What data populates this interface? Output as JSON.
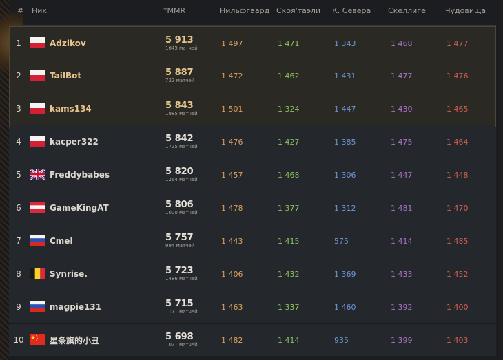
{
  "header": {
    "rank": "#",
    "nick": "Ник",
    "mmr": "*MMR",
    "nilf": "Нильфгаард",
    "sko": "Скоя'таэли",
    "nr": "К. Севера",
    "skel": "Скеллиге",
    "mon": "Чудовища"
  },
  "colors": {
    "nilf": "#d9a05e",
    "sko": "#8cc063",
    "nr": "#6d95d6",
    "skel": "#a874c6",
    "mon": "#d35f4f"
  },
  "rows": [
    {
      "rank": "1",
      "flag": "PL",
      "nick": "Adzikov",
      "mmr": "5 913",
      "matches": "1645 матчей",
      "nilf": "1 497",
      "sko": "1 471",
      "nr": "1 343",
      "skel": "1 468",
      "mon": "1 477"
    },
    {
      "rank": "2",
      "flag": "PL",
      "nick": "TailBot",
      "mmr": "5 887",
      "matches": "732 матчей",
      "nilf": "1 472",
      "sko": "1 462",
      "nr": "1 431",
      "skel": "1 477",
      "mon": "1 476"
    },
    {
      "rank": "3",
      "flag": "PL",
      "nick": "kams134",
      "mmr": "5 843",
      "matches": "1985 матчей",
      "nilf": "1 501",
      "sko": "1 324",
      "nr": "1 447",
      "skel": "1 430",
      "mon": "1 465"
    },
    {
      "rank": "4",
      "flag": "PL",
      "nick": "kacper322",
      "mmr": "5 842",
      "matches": "1725 матчей",
      "nilf": "1 476",
      "sko": "1 427",
      "nr": "1 385",
      "skel": "1 475",
      "mon": "1 464"
    },
    {
      "rank": "5",
      "flag": "GB",
      "nick": "Freddybabes",
      "mmr": "5 820",
      "matches": "1264 матчей",
      "nilf": "1 457",
      "sko": "1 468",
      "nr": "1 306",
      "skel": "1 447",
      "mon": "1 448"
    },
    {
      "rank": "6",
      "flag": "AT",
      "nick": "GameKingAT",
      "mmr": "5 806",
      "matches": "1000 матчей",
      "nilf": "1 478",
      "sko": "1 377",
      "nr": "1 312",
      "skel": "1 481",
      "mon": "1 470"
    },
    {
      "rank": "7",
      "flag": "RU",
      "nick": "Cmel",
      "mmr": "5 757",
      "matches": "994 матчей",
      "nilf": "1 443",
      "sko": "1 415",
      "nr": "575",
      "skel": "1 414",
      "mon": "1 485"
    },
    {
      "rank": "8",
      "flag": "BE",
      "nick": "Synrise.",
      "mmr": "5 723",
      "matches": "1486 матчей",
      "nilf": "1 406",
      "sko": "1 432",
      "nr": "1 369",
      "skel": "1 433",
      "mon": "1 452"
    },
    {
      "rank": "9",
      "flag": "RU",
      "nick": "magpie131",
      "mmr": "5 715",
      "matches": "1171 матчей",
      "nilf": "1 463",
      "sko": "1 337",
      "nr": "1 460",
      "skel": "1 392",
      "mon": "1 400"
    },
    {
      "rank": "10",
      "flag": "CN",
      "nick": "星条旗的小丑",
      "mmr": "5 698",
      "matches": "1021 матчей",
      "nilf": "1 482",
      "sko": "1 414",
      "nr": "935",
      "skel": "1 399",
      "mon": "1 403"
    }
  ]
}
